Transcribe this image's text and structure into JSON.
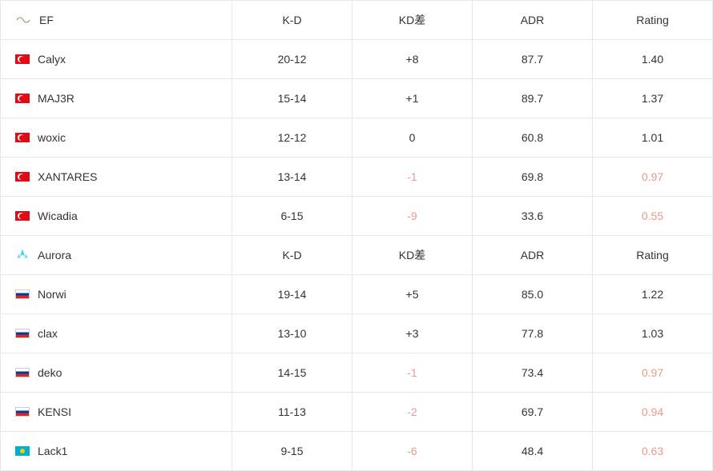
{
  "columns": {
    "kd": "K-D",
    "kdd": "KD差",
    "adr": "ADR",
    "rating": "Rating"
  },
  "colors": {
    "negative": "#e89a8a",
    "text": "#333333",
    "border": "#e8e8e8"
  },
  "teams": [
    {
      "name": "EF",
      "logo": "ef",
      "players": [
        {
          "flag": "tr",
          "name": "Calyx",
          "kd": "20-12",
          "kdd": "+8",
          "kdd_neg": false,
          "adr": "87.7",
          "rating": "1.40",
          "rating_neg": false
        },
        {
          "flag": "tr",
          "name": "MAJ3R",
          "kd": "15-14",
          "kdd": "+1",
          "kdd_neg": false,
          "adr": "89.7",
          "rating": "1.37",
          "rating_neg": false
        },
        {
          "flag": "tr",
          "name": "woxic",
          "kd": "12-12",
          "kdd": "0",
          "kdd_neg": false,
          "adr": "60.8",
          "rating": "1.01",
          "rating_neg": false
        },
        {
          "flag": "tr",
          "name": "XANTARES",
          "kd": "13-14",
          "kdd": "-1",
          "kdd_neg": true,
          "adr": "69.8",
          "rating": "0.97",
          "rating_neg": true
        },
        {
          "flag": "tr",
          "name": "Wicadia",
          "kd": "6-15",
          "kdd": "-9",
          "kdd_neg": true,
          "adr": "33.6",
          "rating": "0.55",
          "rating_neg": true
        }
      ]
    },
    {
      "name": "Aurora",
      "logo": "aurora",
      "players": [
        {
          "flag": "ru",
          "name": "Norwi",
          "kd": "19-14",
          "kdd": "+5",
          "kdd_neg": false,
          "adr": "85.0",
          "rating": "1.22",
          "rating_neg": false
        },
        {
          "flag": "ru",
          "name": "clax",
          "kd": "13-10",
          "kdd": "+3",
          "kdd_neg": false,
          "adr": "77.8",
          "rating": "1.03",
          "rating_neg": false
        },
        {
          "flag": "ru",
          "name": "deko",
          "kd": "14-15",
          "kdd": "-1",
          "kdd_neg": true,
          "adr": "73.4",
          "rating": "0.97",
          "rating_neg": true
        },
        {
          "flag": "ru",
          "name": "KENSI",
          "kd": "11-13",
          "kdd": "-2",
          "kdd_neg": true,
          "adr": "69.7",
          "rating": "0.94",
          "rating_neg": true
        },
        {
          "flag": "kz",
          "name": "Lack1",
          "kd": "9-15",
          "kdd": "-6",
          "kdd_neg": true,
          "adr": "48.4",
          "rating": "0.63",
          "rating_neg": true
        }
      ]
    }
  ]
}
